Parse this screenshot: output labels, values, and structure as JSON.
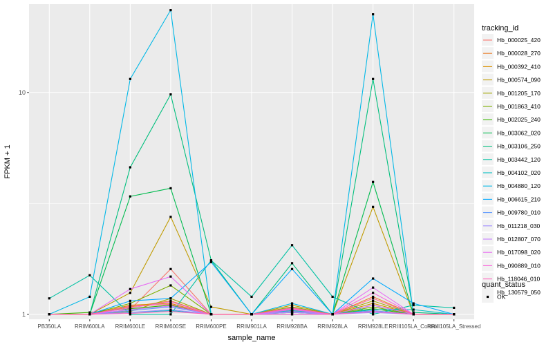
{
  "chart_data": {
    "type": "line",
    "xlabel": "sample_name",
    "ylabel": "FPKM + 1",
    "y_scale": "log",
    "y_ticks": [
      1,
      10
    ],
    "ylim": [
      0.95,
      25
    ],
    "grid": true,
    "legend_position": "right",
    "categories": [
      "PB350LA",
      "RRIM600LA",
      "RRIM600LE",
      "RRIM600SE",
      "RRIM600PE",
      "RRIM901LA",
      "RRIM928BA",
      "RRIM928LA",
      "RRIM928LE",
      "RRIII105LA_Control",
      "RRIII105LA_Stressed"
    ],
    "legend_title": "tracking_id",
    "series": [
      {
        "name": "Hb_000025_420",
        "color": "#F8766D",
        "values": [
          1.0,
          1.0,
          1.05,
          1.6,
          1.0,
          1.0,
          1.02,
          1.0,
          1.1,
          1.0,
          1.0
        ]
      },
      {
        "name": "Hb_000028_270",
        "color": "#EA8331",
        "values": [
          1.0,
          1.0,
          1.08,
          1.15,
          1.0,
          1.0,
          1.04,
          1.0,
          1.2,
          1.0,
          1.0
        ]
      },
      {
        "name": "Hb_000392_410",
        "color": "#D89000",
        "values": [
          1.0,
          1.0,
          1.1,
          1.12,
          1.0,
          1.0,
          1.06,
          1.0,
          1.12,
          1.0,
          1.0
        ]
      },
      {
        "name": "Hb_000574_090",
        "color": "#C09B00",
        "values": [
          1.0,
          1.0,
          1.25,
          2.75,
          1.08,
          1.0,
          1.1,
          1.0,
          3.05,
          1.0,
          1.0
        ]
      },
      {
        "name": "Hb_001205_170",
        "color": "#A3A500",
        "values": [
          1.0,
          1.0,
          1.03,
          1.18,
          1.0,
          1.0,
          1.05,
          1.0,
          1.15,
          1.0,
          1.0
        ]
      },
      {
        "name": "Hb_001863_410",
        "color": "#7CAE00",
        "values": [
          1.0,
          1.0,
          1.12,
          1.35,
          1.0,
          1.0,
          1.08,
          1.0,
          1.08,
          1.0,
          1.0
        ]
      },
      {
        "name": "Hb_002025_240",
        "color": "#39B600",
        "values": [
          1.0,
          1.02,
          1.06,
          1.1,
          1.0,
          1.0,
          1.03,
          1.0,
          1.06,
          1.0,
          1.0
        ]
      },
      {
        "name": "Hb_003062_020",
        "color": "#00BB4E",
        "values": [
          1.0,
          1.0,
          3.4,
          3.7,
          1.0,
          1.0,
          1.02,
          1.0,
          3.95,
          1.0,
          1.0
        ]
      },
      {
        "name": "Hb_003106_250",
        "color": "#00BF7D",
        "values": [
          1.0,
          1.0,
          4.6,
          9.8,
          1.75,
          1.0,
          1.7,
          1.0,
          11.5,
          1.02,
          1.0
        ]
      },
      {
        "name": "Hb_003442_120",
        "color": "#00C1A3",
        "values": [
          1.18,
          1.5,
          1.0,
          1.0,
          1.75,
          1.2,
          2.05,
          1.2,
          1.0,
          1.1,
          1.07
        ]
      },
      {
        "name": "Hb_004102_020",
        "color": "#00BFC4",
        "values": [
          1.0,
          1.0,
          1.02,
          1.04,
          1.0,
          1.0,
          1.04,
          1.0,
          1.05,
          1.05,
          1.0
        ]
      },
      {
        "name": "Hb_004880_120",
        "color": "#00B8E7",
        "values": [
          1.0,
          1.2,
          11.5,
          23.5,
          1.0,
          1.0,
          1.12,
          1.0,
          22.5,
          1.0,
          1.0
        ]
      },
      {
        "name": "Hb_006615_210",
        "color": "#00A9FF",
        "values": [
          1.0,
          1.0,
          1.15,
          1.18,
          1.72,
          1.0,
          1.6,
          1.0,
          1.45,
          1.12,
          1.0
        ]
      },
      {
        "name": "Hb_009780_010",
        "color": "#619CFF",
        "values": [
          1.0,
          1.0,
          1.04,
          1.08,
          1.0,
          1.0,
          1.0,
          1.0,
          1.04,
          1.0,
          1.0
        ]
      },
      {
        "name": "Hb_011218_030",
        "color": "#9F8CFF",
        "values": [
          1.0,
          1.0,
          1.02,
          1.05,
          1.0,
          1.0,
          1.02,
          1.0,
          1.02,
          1.0,
          1.0
        ]
      },
      {
        "name": "Hb_012807_070",
        "color": "#C77CFF",
        "values": [
          1.0,
          1.0,
          1.05,
          1.09,
          1.0,
          1.0,
          1.03,
          1.0,
          1.1,
          1.0,
          1.0
        ]
      },
      {
        "name": "Hb_017098_020",
        "color": "#E76BF3",
        "values": [
          1.0,
          1.0,
          1.3,
          1.48,
          1.0,
          1.0,
          1.05,
          1.0,
          1.32,
          1.0,
          1.0
        ]
      },
      {
        "name": "Hb_090889_010",
        "color": "#FA62DB",
        "values": [
          1.0,
          1.0,
          1.07,
          1.14,
          1.0,
          1.0,
          1.06,
          1.0,
          1.25,
          1.0,
          1.0
        ]
      },
      {
        "name": "Hb_118046_010",
        "color": "#FF62BC",
        "values": [
          1.0,
          1.0,
          1.01,
          1.03,
          1.0,
          1.0,
          1.0,
          1.0,
          1.03,
          1.0,
          1.0
        ]
      },
      {
        "name": "Hb_130579_050",
        "color": "#FF6C91",
        "values": [
          1.0,
          1.0,
          1.09,
          1.11,
          1.0,
          1.0,
          1.07,
          1.0,
          1.18,
          1.0,
          1.0
        ]
      }
    ],
    "legend2": {
      "title": "quant_status",
      "entries": [
        "OK"
      ]
    }
  },
  "colors": {
    "panel_background": "#EBEBEB",
    "grid_major": "#FFFFFF",
    "point": "#000000"
  }
}
